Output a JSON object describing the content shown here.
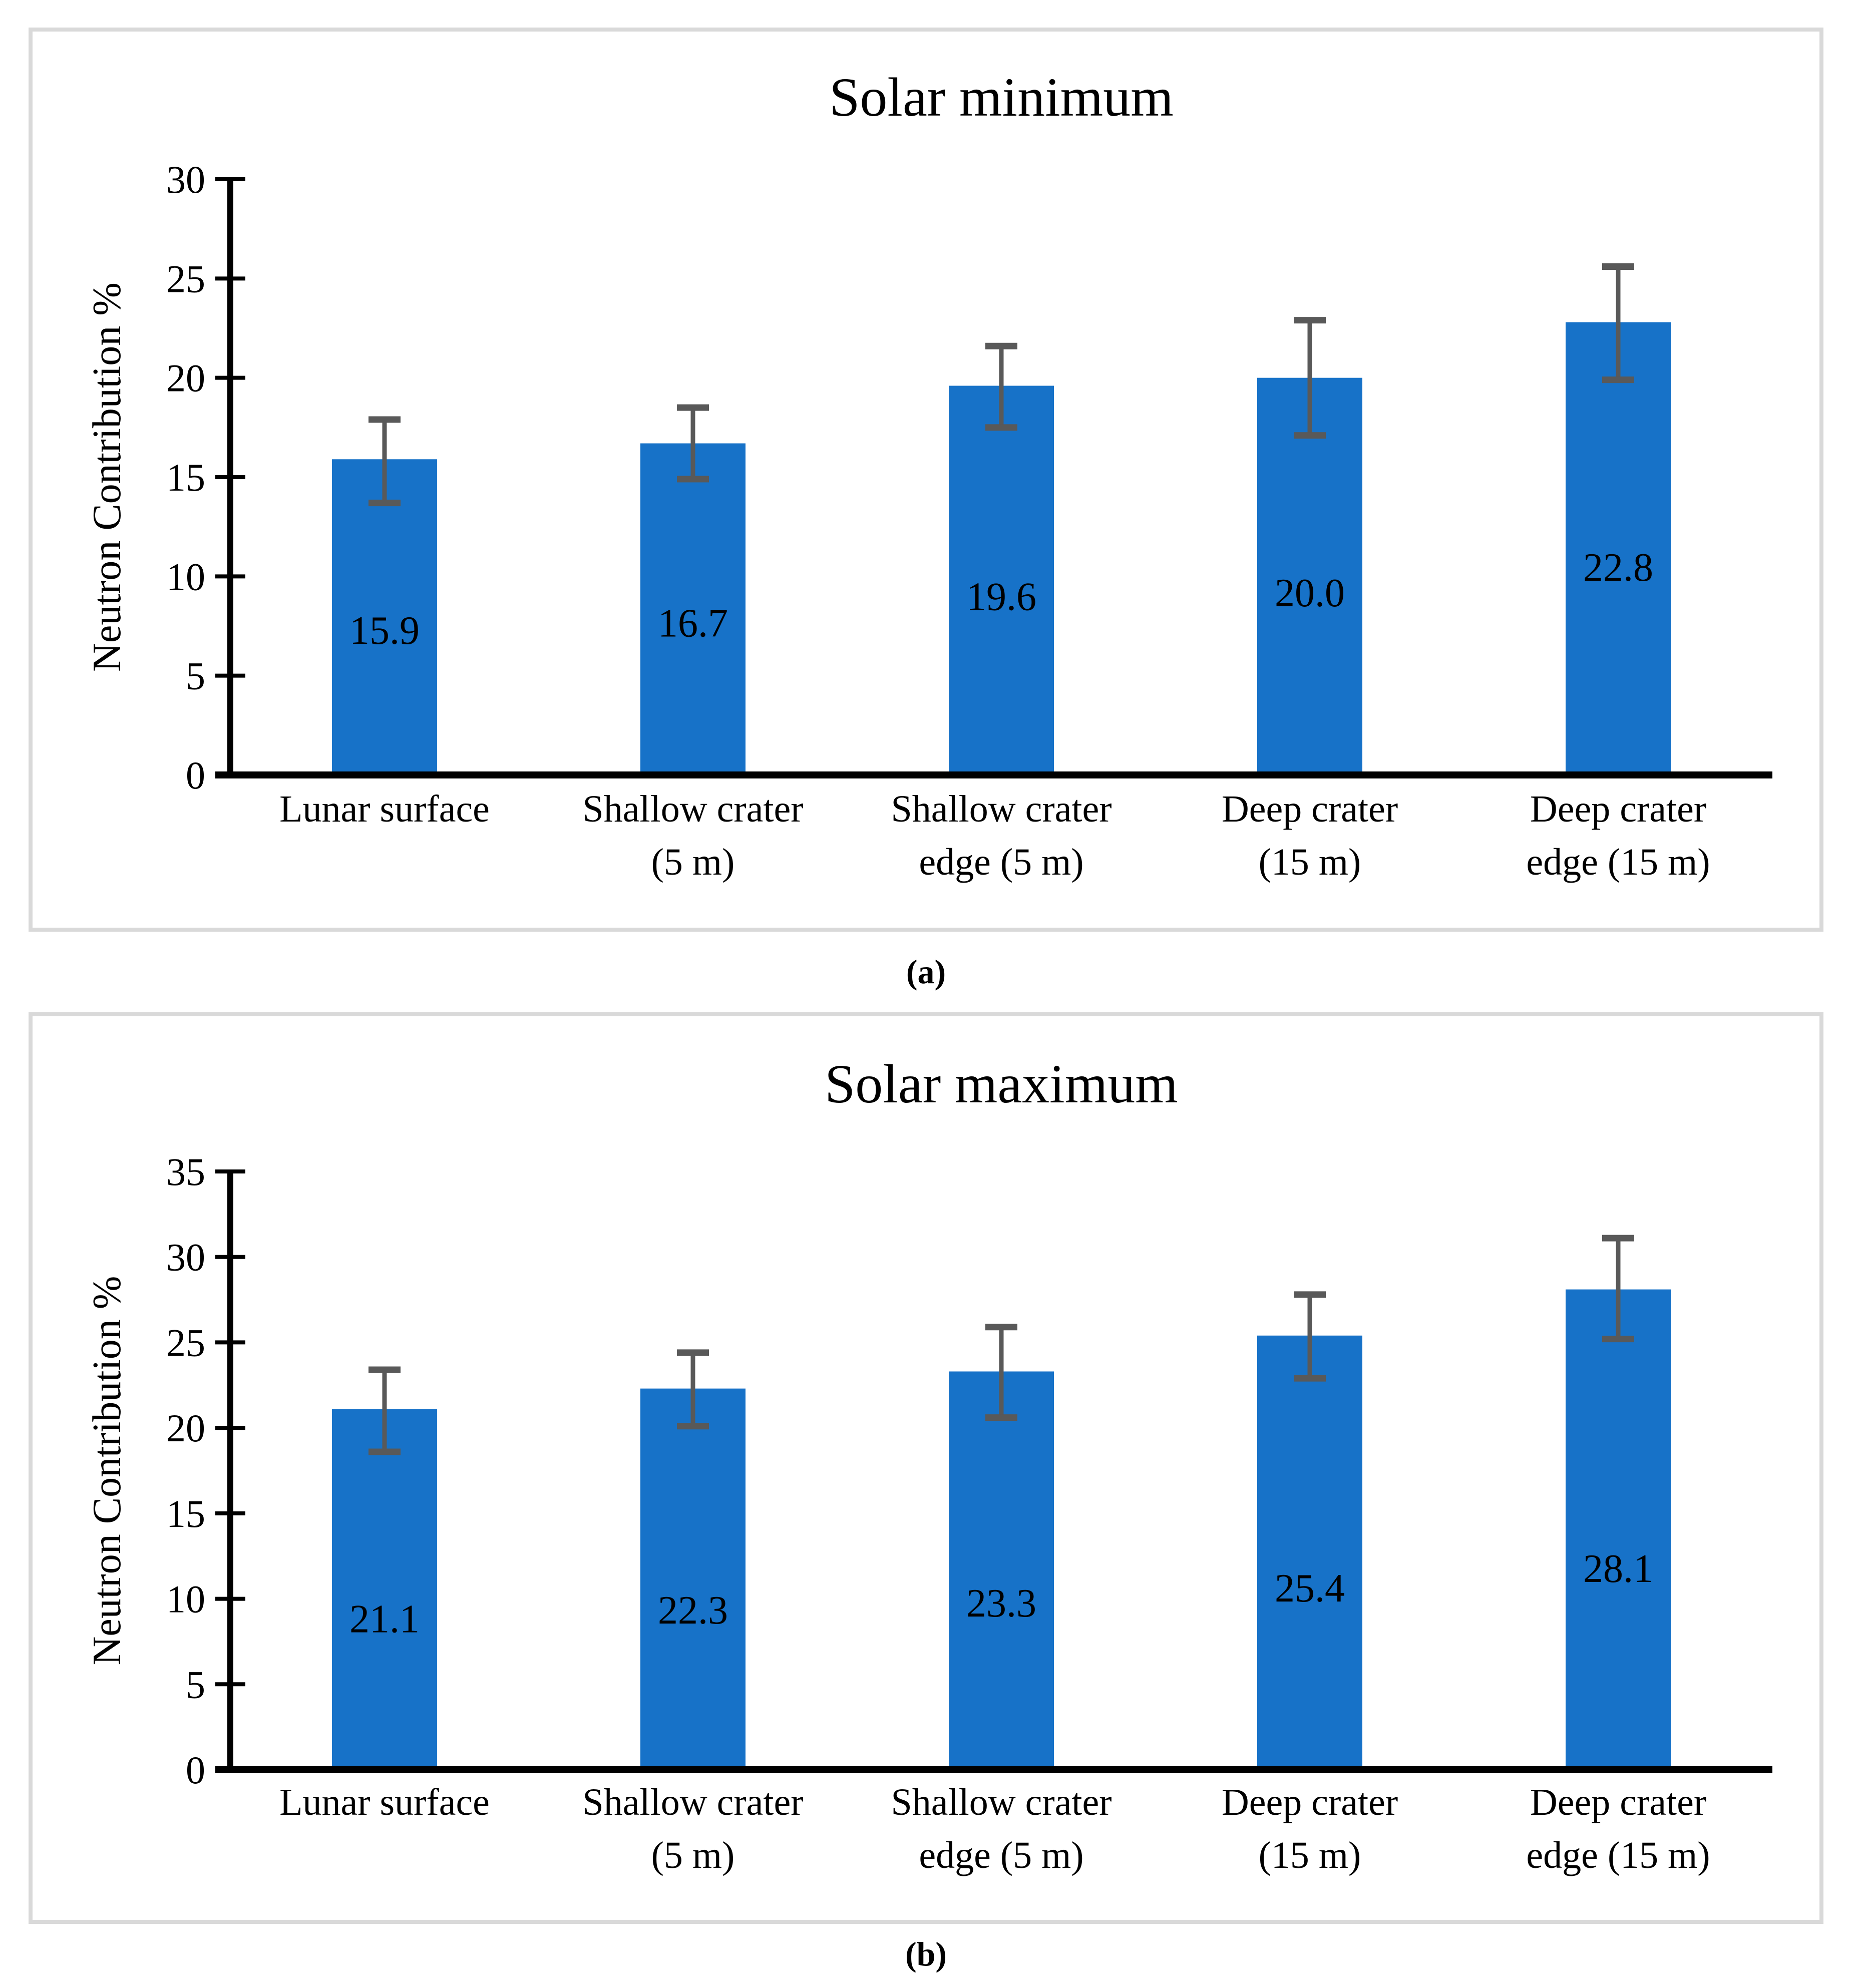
{
  "figure": {
    "caption_a": "(a)",
    "caption_b": "(b)",
    "colors": {
      "bar": "#1772C8",
      "error_bar": "#595959",
      "axis": "#000000",
      "panel_border": "#D9D9D9",
      "text": "#000000"
    }
  },
  "chart_data": [
    {
      "type": "bar",
      "title": "Solar minimum",
      "xlabel": "",
      "ylabel": "Neutron Contribution %",
      "ylim": [
        0,
        30
      ],
      "ytick_step": 5,
      "ytick_labels": [
        "0",
        "5",
        "10",
        "15",
        "20",
        "25",
        "30"
      ],
      "grid": false,
      "legend_position": "none",
      "categories": [
        [
          "Lunar surface"
        ],
        [
          "Shallow crater",
          "(5 m)"
        ],
        [
          "Shallow crater",
          "edge (5 m)"
        ],
        [
          "Deep crater",
          "(15 m)"
        ],
        [
          "Deep crater",
          "edge (15 m)"
        ]
      ],
      "values": [
        15.9,
        16.7,
        19.6,
        20.0,
        22.8
      ],
      "data_labels": [
        "15.9",
        "16.7",
        "19.6",
        "20.0",
        "22.8"
      ],
      "error_plus": [
        2.0,
        1.8,
        2.0,
        2.9,
        2.8
      ],
      "error_minus": [
        2.2,
        1.8,
        2.1,
        2.9,
        2.9
      ]
    },
    {
      "type": "bar",
      "title": "Solar maximum",
      "xlabel": "",
      "ylabel": "Neutron Contribution %",
      "ylim": [
        0,
        35
      ],
      "ytick_step": 5,
      "ytick_labels": [
        "0",
        "5",
        "10",
        "15",
        "20",
        "25",
        "30",
        "35"
      ],
      "grid": false,
      "legend_position": "none",
      "categories": [
        [
          "Lunar surface"
        ],
        [
          "Shallow crater",
          "(5 m)"
        ],
        [
          "Shallow crater",
          "edge (5 m)"
        ],
        [
          "Deep crater",
          "(15 m)"
        ],
        [
          "Deep crater",
          "edge (15 m)"
        ]
      ],
      "values": [
        21.1,
        22.3,
        23.3,
        25.4,
        28.1
      ],
      "data_labels": [
        "21.1",
        "22.3",
        "23.3",
        "25.4",
        "28.1"
      ],
      "error_plus": [
        2.3,
        2.1,
        2.6,
        2.4,
        3.0
      ],
      "error_minus": [
        2.5,
        2.2,
        2.7,
        2.5,
        2.9
      ]
    }
  ]
}
